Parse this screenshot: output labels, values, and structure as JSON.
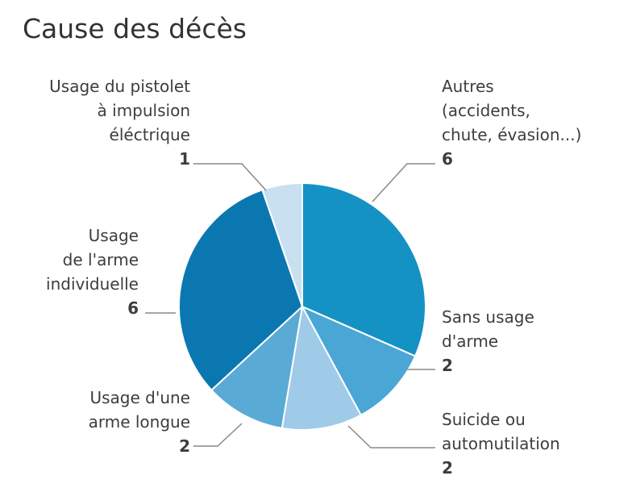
{
  "chart_data": {
    "type": "pie",
    "title": "Cause des décès",
    "slices": [
      {
        "label": "Autres (accidents, chute, évasion...)",
        "lines": [
          "Autres",
          "(accidents,",
          "chute, évasion...)"
        ],
        "value": 6,
        "color": "#1592c4"
      },
      {
        "label": "Sans usage d'arme",
        "lines": [
          "Sans usage",
          "d'arme"
        ],
        "value": 2,
        "color": "#4aa6d4"
      },
      {
        "label": "Suicide ou automutilation",
        "lines": [
          "Suicide ou",
          "automutilation"
        ],
        "value": 2,
        "color": "#9fcbe8"
      },
      {
        "label": "Usage d'une arme longue",
        "lines": [
          "Usage d'une",
          "arme longue"
        ],
        "value": 2,
        "color": "#5aaad6"
      },
      {
        "label": "Usage de l'arme individuelle",
        "lines": [
          "Usage",
          "de l'arme",
          "individuelle"
        ],
        "value": 6,
        "color": "#0b77b0"
      },
      {
        "label": "Usage du pistolet à impulsion éléctrique",
        "lines": [
          "Usage du pistolet",
          "à impulsion",
          "éléctrique"
        ],
        "value": 1,
        "color": "#c8e0f0"
      }
    ],
    "start": "top",
    "direction": "clockwise",
    "legend": "none"
  }
}
